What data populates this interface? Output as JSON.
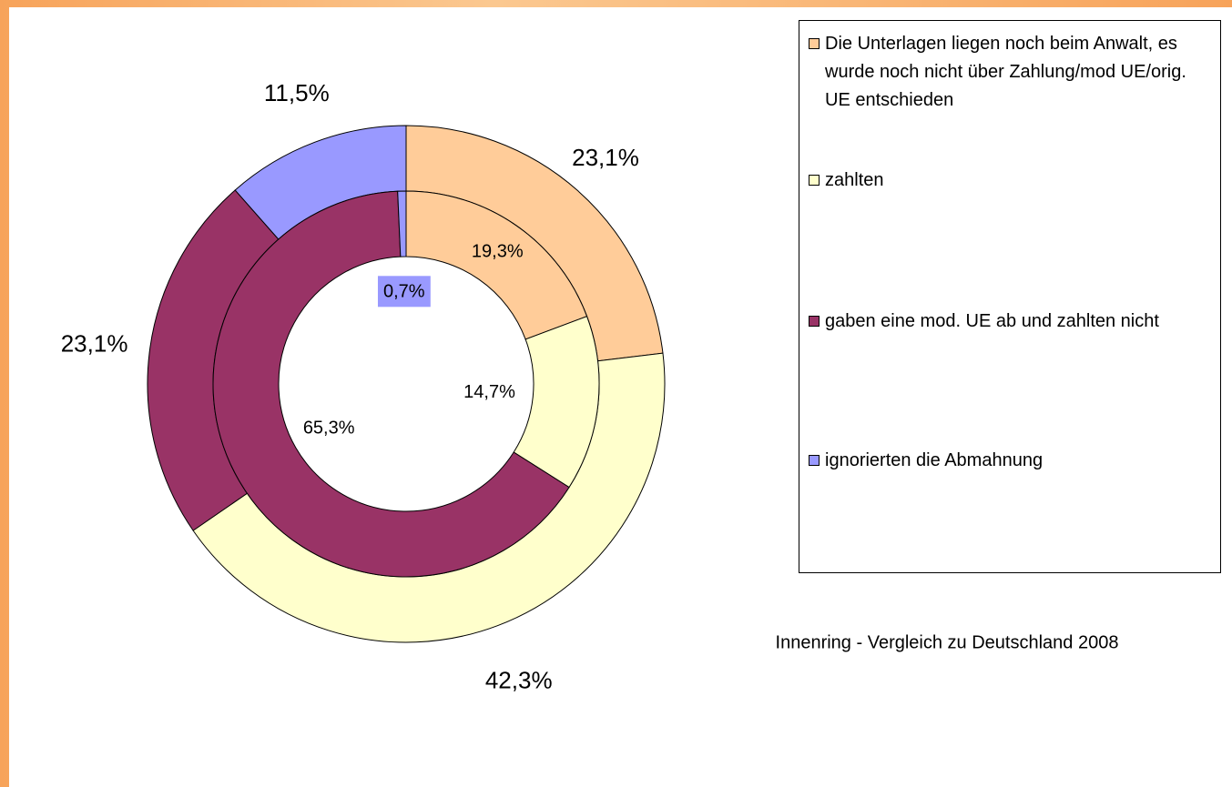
{
  "chart_data": {
    "type": "doughnut",
    "categories": [
      "Die Unterlagen liegen noch beim Anwalt, es wurde noch nicht über Zahlung/mod UE/orig. UE entschieden",
      "zahlten",
      "gaben eine mod. UE ab und zahlten nicht",
      "ignorierten die Abmahnung"
    ],
    "colors": [
      "#ffcc99",
      "#ffffcc",
      "#993366",
      "#9999ff"
    ],
    "series": [
      {
        "values": [
          23.1,
          42.3,
          23.1,
          11.5
        ],
        "value_labels": [
          "23,1%",
          "42,3%",
          "23,1%",
          "11,5%"
        ]
      },
      {
        "values": [
          19.3,
          14.7,
          65.3,
          0.7
        ],
        "value_labels": [
          "19,3%",
          "14,7%",
          "65,3%",
          "0,7%"
        ]
      }
    ],
    "annotation": "Innenring - Vergleich zu Deutschland 2008"
  }
}
